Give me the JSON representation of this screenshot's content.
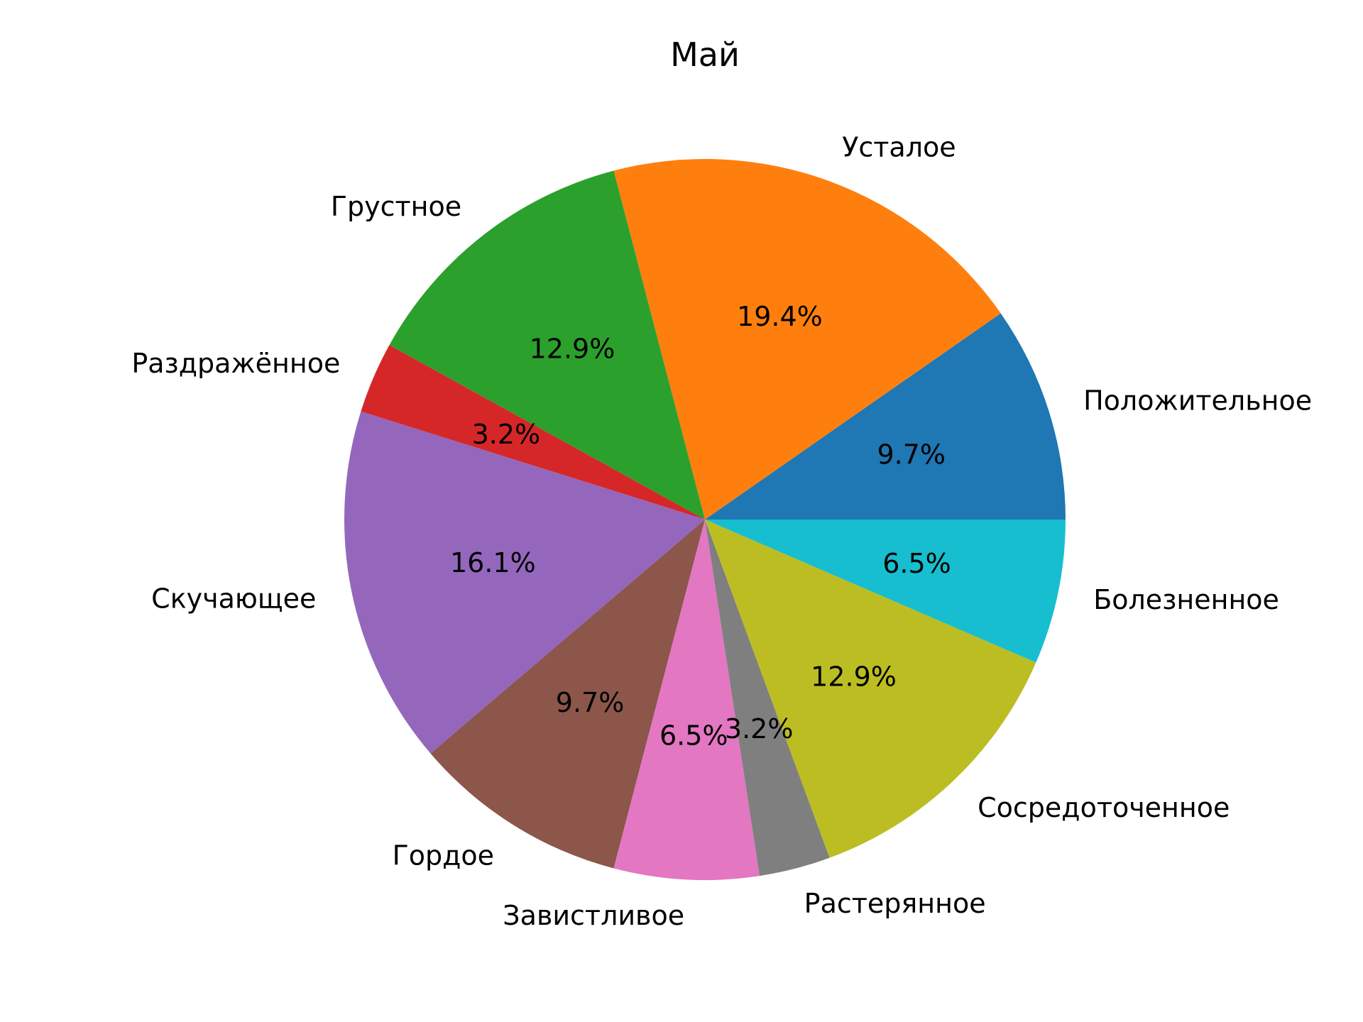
{
  "chart_data": {
    "type": "pie",
    "title": "Май",
    "start_angle": 0,
    "direction": "counterclockwise",
    "categories": [
      "Положительное",
      "Усталое",
      "Грустное",
      "Раздражённое",
      "Скучающее",
      "Гордое",
      "Завистливое",
      "Растерянное",
      "Сосредоточенное",
      "Болезненное"
    ],
    "values": [
      9.7,
      19.4,
      12.9,
      3.2,
      16.1,
      9.7,
      6.5,
      3.2,
      12.9,
      6.5
    ],
    "value_labels": [
      "9.7%",
      "19.4%",
      "12.9%",
      "3.2%",
      "16.1%",
      "9.7%",
      "6.5%",
      "3.2%",
      "12.9%",
      "6.5%"
    ],
    "colors": [
      "#1f77b4",
      "#ff7f0e",
      "#2ca02c",
      "#d62728",
      "#9467bd",
      "#8c564b",
      "#e377c2",
      "#7f7f7f",
      "#bcbd22",
      "#17becf"
    ]
  }
}
